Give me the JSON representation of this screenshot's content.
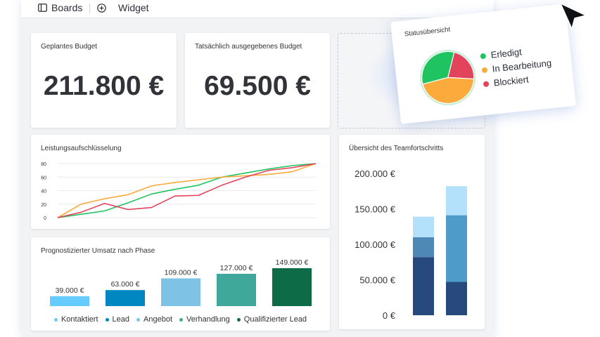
{
  "topbar": {
    "boards_label": "Boards",
    "widget_label": "Widget",
    "icons": [
      "board-icon",
      "plus-icon"
    ]
  },
  "budget_planned": {
    "title": "Geplantes Budget",
    "value": "211.800 €"
  },
  "budget_spent": {
    "title": "Tatsächlich ausgegebenes Budget",
    "value": "69.500 €"
  },
  "status_overview": {
    "title": "Statusübersicht",
    "items": [
      {
        "label": "Erledigt",
        "color": "#1fc35f",
        "share": 0.33
      },
      {
        "label": "In Bearbeitung",
        "color": "#fbab3c",
        "share": 0.45
      },
      {
        "label": "Blockiert",
        "color": "#e2445c",
        "share": 0.22
      }
    ]
  },
  "performance": {
    "title": "Leistungsaufschlüsselung",
    "chart_data": {
      "type": "line",
      "yticks": [
        "0",
        "20",
        "40",
        "60",
        "80"
      ],
      "ylim": [
        0,
        80
      ],
      "x": [
        0,
        1,
        2,
        3,
        4,
        5,
        6,
        7,
        8,
        9,
        10,
        11
      ],
      "series": [
        {
          "color": "#1fc35f",
          "values": [
            0,
            5,
            10,
            22,
            35,
            42,
            48,
            60,
            66,
            72,
            77,
            80
          ]
        },
        {
          "color": "#fbab3c",
          "values": [
            0,
            20,
            28,
            34,
            47,
            52,
            56,
            60,
            62,
            64,
            68,
            80
          ]
        },
        {
          "color": "#e2445c",
          "values": [
            0,
            8,
            21,
            12,
            15,
            32,
            33,
            48,
            60,
            70,
            74,
            80
          ]
        }
      ]
    }
  },
  "forecast": {
    "title": "Prognostizierter Umsatz nach Phase",
    "chart_data": {
      "type": "bar",
      "categories": [
        "Kontaktiert",
        "Lead",
        "Angebot",
        "Verhandlung",
        "Qualifizierter Lead"
      ],
      "values": [
        39000,
        63000,
        109000,
        127000,
        149000
      ],
      "labels": [
        "39.000 €",
        "63.000 €",
        "109.000 €",
        "127.000 €",
        "149.000 €"
      ],
      "colors": [
        "#66ccff",
        "#0086c0",
        "#7ec3e6",
        "#3fa89b",
        "#0d6b47"
      ]
    }
  },
  "team_progress": {
    "title": "Übersicht des Teamfortschritts",
    "chart_data": {
      "type": "bar",
      "stacked": true,
      "yticks": [
        "200.000 €",
        "150.000 €",
        "100.000 €",
        "50.000 €",
        "0 €"
      ],
      "ylim": [
        0,
        200000
      ],
      "bars": [
        {
          "segments": [
            {
              "value": 82000,
              "color": "#26497e"
            },
            {
              "value": 28000,
              "color": "#4e89b6"
            },
            {
              "value": 29000,
              "color": "#b3e0fa"
            }
          ]
        },
        {
          "segments": [
            {
              "value": 47000,
              "color": "#26497e"
            },
            {
              "value": 94000,
              "color": "#4e9ac9"
            },
            {
              "value": 41000,
              "color": "#b3e0fa"
            }
          ]
        }
      ]
    }
  }
}
